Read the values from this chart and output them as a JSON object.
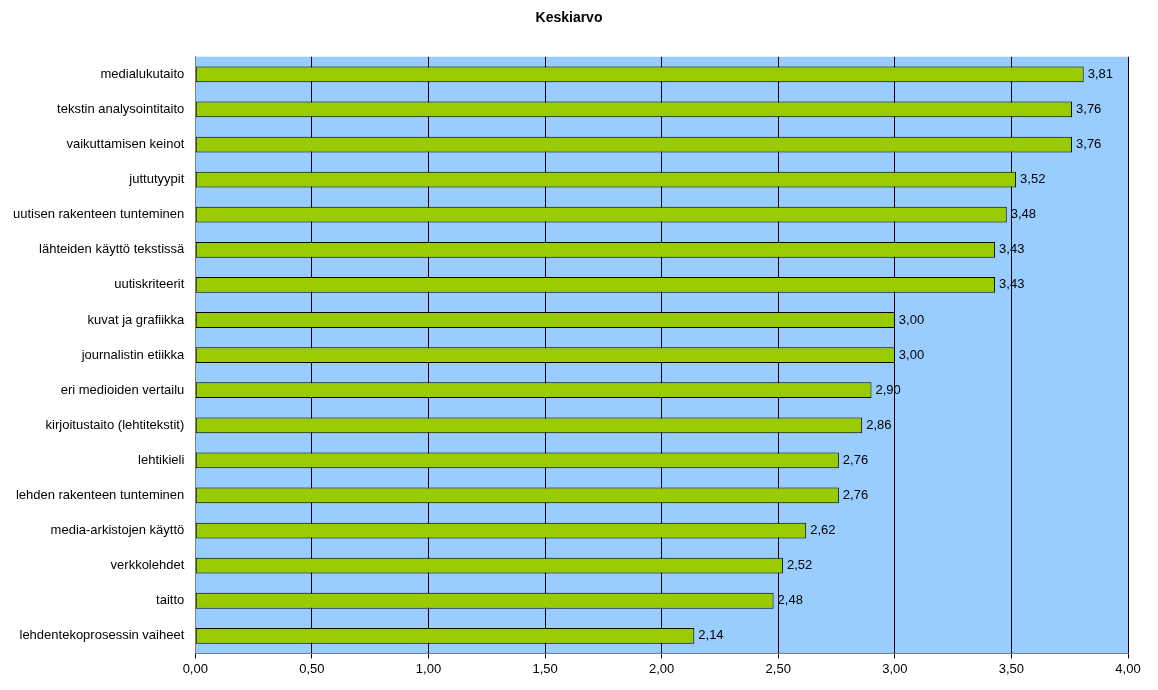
{
  "chart_data": {
    "type": "bar",
    "orientation": "horizontal",
    "title": "Keskiarvo",
    "categories": [
      "medialukutaito",
      "tekstin analysointitaito",
      "vaikuttamisen keinot",
      "juttutyypit",
      "uutisen rakenteen tunteminen",
      "lähteiden käyttö tekstissä",
      "uutiskriteerit",
      "kuvat ja grafiikka",
      "journalistin etiikka",
      "eri medioiden vertailu",
      "kirjoitustaito (lehtitekstit)",
      "lehtikieli",
      "lehden rakenteen tunteminen",
      "media-arkistojen käyttö",
      "verkkolehdet",
      "taitto",
      "lehdentekoprosessin vaiheet"
    ],
    "values": [
      3.81,
      3.76,
      3.76,
      3.52,
      3.48,
      3.43,
      3.43,
      3.0,
      3.0,
      2.9,
      2.86,
      2.76,
      2.76,
      2.62,
      2.52,
      2.48,
      2.14
    ],
    "value_labels": [
      "3,81",
      "3,76",
      "3,76",
      "3,52",
      "3,48",
      "3,43",
      "3,43",
      "3,00",
      "3,00",
      "2,90",
      "2,86",
      "2,76",
      "2,76",
      "2,62",
      "2,52",
      "2,48",
      "2,14"
    ],
    "color": "#99cc00",
    "xlim": [
      0,
      4
    ],
    "xticks": [
      {
        "value": 0,
        "label": "0,00"
      },
      {
        "value": 0.5,
        "label": "0,50"
      },
      {
        "value": 1,
        "label": "1,00"
      },
      {
        "value": 1.5,
        "label": "1,50"
      },
      {
        "value": 2,
        "label": "2,00"
      },
      {
        "value": 2.5,
        "label": "2,50"
      },
      {
        "value": 3,
        "label": "3,00"
      },
      {
        "value": 3.5,
        "label": "3,50"
      },
      {
        "value": 4,
        "label": "4,00"
      }
    ],
    "grid": "x"
  }
}
